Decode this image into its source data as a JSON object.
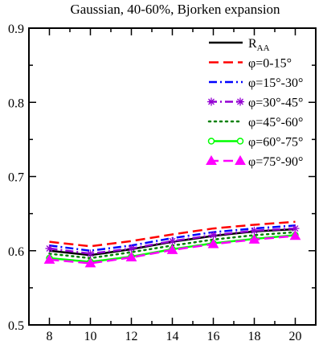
{
  "chart_data": {
    "type": "line",
    "title": "Gaussian, 40-60%, Bjorken expansion",
    "xlabel": "",
    "ylabel": "",
    "xlim": [
      7,
      21
    ],
    "ylim": [
      0.5,
      0.9
    ],
    "x_ticks": [
      8,
      10,
      12,
      14,
      16,
      18,
      20
    ],
    "y_ticks": [
      0.5,
      0.6,
      0.7,
      0.8,
      0.9
    ],
    "x_ticks_labels": [
      "8",
      "10",
      "12",
      "14",
      "16",
      "18",
      "20"
    ],
    "y_ticks_labels": [
      "0.5",
      "0.6",
      "0.7",
      "0.8",
      "0.9"
    ],
    "grid": false,
    "legend_position": "top-right",
    "x": [
      8,
      10,
      12,
      14,
      16,
      18,
      20
    ],
    "series": [
      {
        "name": "R_AA",
        "label_main": "R",
        "label_sub": "AA",
        "color": "#000000",
        "dash": "",
        "marker": "none",
        "values": [
          0.6,
          0.594,
          0.602,
          0.612,
          0.62,
          0.626,
          0.629
        ]
      },
      {
        "name": "φ=0-15°",
        "color": "#ff0000",
        "dash": "12,6",
        "marker": "none",
        "values": [
          0.612,
          0.606,
          0.613,
          0.622,
          0.63,
          0.635,
          0.639
        ]
      },
      {
        "name": "φ=15°-30°",
        "color": "#0000ff",
        "dash": "10,4,2,4",
        "marker": "none",
        "values": [
          0.607,
          0.6,
          0.607,
          0.617,
          0.625,
          0.63,
          0.634
        ]
      },
      {
        "name": "φ=30°-45°",
        "color": "#9400d3",
        "dash": "10,4,2,4",
        "marker": "star",
        "values": [
          0.603,
          0.596,
          0.603,
          0.613,
          0.621,
          0.627,
          0.63
        ]
      },
      {
        "name": "φ=45°-60°",
        "color": "#008000",
        "dash": "2,5",
        "marker": "none",
        "values": [
          0.596,
          0.59,
          0.598,
          0.607,
          0.615,
          0.621,
          0.625
        ]
      },
      {
        "name": "φ=60°-75°",
        "color": "#00ff00",
        "dash": "",
        "marker": "circle",
        "values": [
          0.59,
          0.585,
          0.592,
          0.602,
          0.61,
          0.616,
          0.621
        ]
      },
      {
        "name": "φ=75°-90°",
        "color": "#ff00ff",
        "dash": "12,6",
        "marker": "triangle",
        "values": [
          0.588,
          0.583,
          0.591,
          0.601,
          0.609,
          0.615,
          0.62
        ]
      }
    ]
  }
}
